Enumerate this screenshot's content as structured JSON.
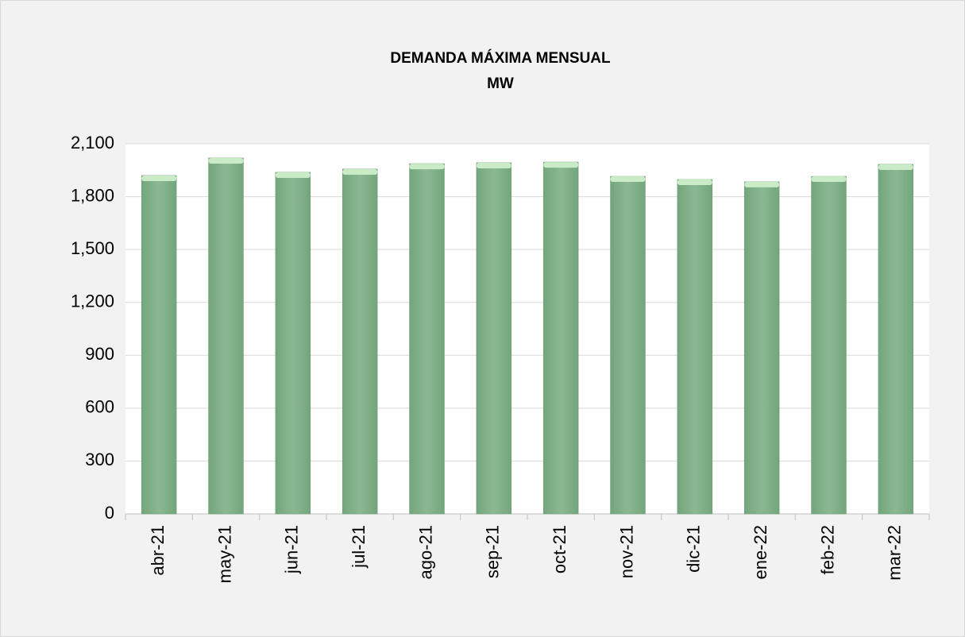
{
  "chart_data": {
    "type": "bar",
    "title": "DEMANDA  MÁXIMA  MENSUAL",
    "subtitle": "MW",
    "categories": [
      "abr-21",
      "may-21",
      "jun-21",
      "jul-21",
      "ago-21",
      "sep-21",
      "oct-21",
      "nov-21",
      "dic-21",
      "ene-22",
      "feb-22",
      "mar-22"
    ],
    "values": [
      1920,
      2019,
      1938,
      1956,
      1987,
      1992,
      1996,
      1915,
      1897,
      1884,
      1915,
      1983
    ],
    "color": "#86b38e",
    "ylim": [
      0,
      2100
    ],
    "yticks": [
      0,
      300,
      600,
      900,
      {
        "value": 1200,
        "label": "1,200"
      },
      {
        "value": 1500,
        "label": "1,500"
      },
      {
        "value": 1800,
        "label": "1,800"
      },
      {
        "value": 2100,
        "label": "2,100"
      }
    ],
    "grid": true
  }
}
